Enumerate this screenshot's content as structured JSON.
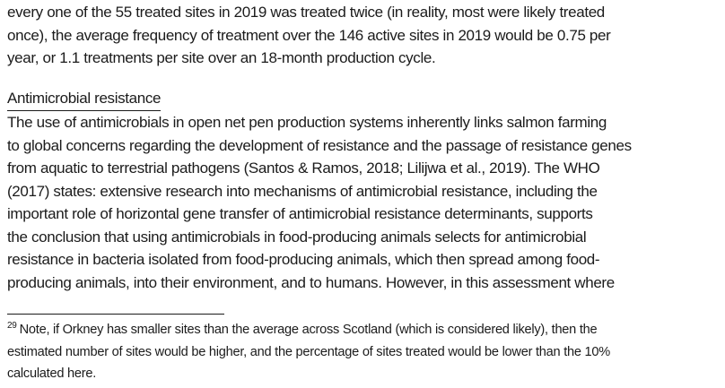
{
  "page": {
    "colors": {
      "background": "#ffffff",
      "text": "#1b1b1b"
    },
    "intro_paragraph": {
      "lines": [
        "every one of the 55 treated sites in 2019 was treated twice (in reality, most were likely treated",
        "once), the average frequency of treatment over the 146 active sites in 2019 would be 0.75 per",
        "year, or 1.1 treatments per site over an 18-month production cycle."
      ]
    },
    "section": {
      "heading": "Antimicrobial resistance",
      "paragraph_lines": [
        "The use of antimicrobials in open net pen production systems inherently links salmon farming",
        "to global concerns regarding the development of resistance and the passage of resistance genes",
        "from aquatic to terrestrial pathogens (Santos & Ramos, 2018; Lilijwa et al., 2019). The WHO",
        "(2017) states: extensive research into mechanisms of antimicrobial resistance, including the",
        "important role of horizontal gene transfer of antimicrobial resistance determinants, supports",
        "the conclusion that using antimicrobials in food-producing animals selects for antimicrobial",
        "resistance in bacteria isolated from food-producing animals, which then spread among food-",
        "producing animals, into their environment, and to humans. However, in this assessment where"
      ]
    },
    "footnote": {
      "marker": "29",
      "lines": [
        "Note, if Orkney has smaller sites than the average across Scotland (which is considered likely), then the",
        "estimated number of sites would be higher, and the percentage of sites treated would be lower than the 10%",
        "calculated here."
      ]
    }
  }
}
